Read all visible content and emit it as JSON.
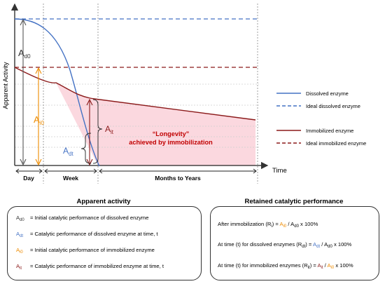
{
  "axes": {
    "y_label": "Apparent Activity",
    "x_label": "Time"
  },
  "time_segments": [
    "Day",
    "Week",
    "Months to Years"
  ],
  "curve_labels": {
    "ad0": "A",
    "ad0_sub": "d0",
    "ai0": "A",
    "ai0_sub": "i0",
    "ait": "A",
    "ait_sub": "it",
    "adt": "A",
    "adt_sub": "dt"
  },
  "annotation": {
    "line1": "“Longevity”",
    "line2": "achieved by immobilization"
  },
  "legend": [
    {
      "label": "Dissolved enzyme",
      "color": "#4472c4",
      "style": "solid"
    },
    {
      "label": "Ideal dissolved enzyme",
      "color": "#4472c4",
      "style": "dashed"
    },
    {
      "label": "Immobilized enzyme",
      "color": "#8b1a1a",
      "style": "solid"
    },
    {
      "label": "Ideal immobilized enzyme",
      "color": "#8b1a1a",
      "style": "dashed"
    }
  ],
  "colors": {
    "dissolved": "#4472c4",
    "immobilized": "#8b1a1a",
    "initial_immobilized": "#ed8b00",
    "longevity_fill": "#fbd4dc",
    "longevity_text": "#c00000"
  },
  "apparent_activity": {
    "title": "Apparent activity",
    "rows": [
      {
        "sym": "A",
        "sub": "d0",
        "color": "#333333",
        "text": "= Initial catalytic performance of dissolved enzyme"
      },
      {
        "sym": "A",
        "sub": "dt",
        "color": "#4472c4",
        "text": "= Catalytic performance of dissolved enzyme at time, t"
      },
      {
        "sym": "A",
        "sub": "i0",
        "color": "#ed8b00",
        "text": "= Initial catalytic performance of immobilized enzyme"
      },
      {
        "sym": "A",
        "sub": "it",
        "color": "#8b1a1a",
        "text": "= Catalytic performance of immobilized enzyme at time, t"
      }
    ]
  },
  "retained": {
    "title": "Retained catalytic performance",
    "row1": {
      "prefix": "After immobilization (R",
      "prefix_sub": "i",
      "mid": ") = ",
      "num": "A",
      "num_sub": "i0",
      "op": " / ",
      "den": "A",
      "den_sub": "d0",
      "tail": " x 100%"
    },
    "row2": {
      "prefix": "At time (t) for dissolved enzymes (R",
      "prefix_sub": "dt",
      "mid": ") = ",
      "num": "A",
      "num_sub": "dt",
      "op": " / ",
      "den": "A",
      "den_sub": "d0",
      "tail": " x 100%"
    },
    "row3": {
      "prefix": "At time (t) for immobilized enzymes (R",
      "prefix_sub": "it",
      "mid": ") = ",
      "num": "A",
      "num_sub": "it",
      "op": " / ",
      "den": "A",
      "den_sub": "i0",
      "tail": " x 100%"
    }
  }
}
